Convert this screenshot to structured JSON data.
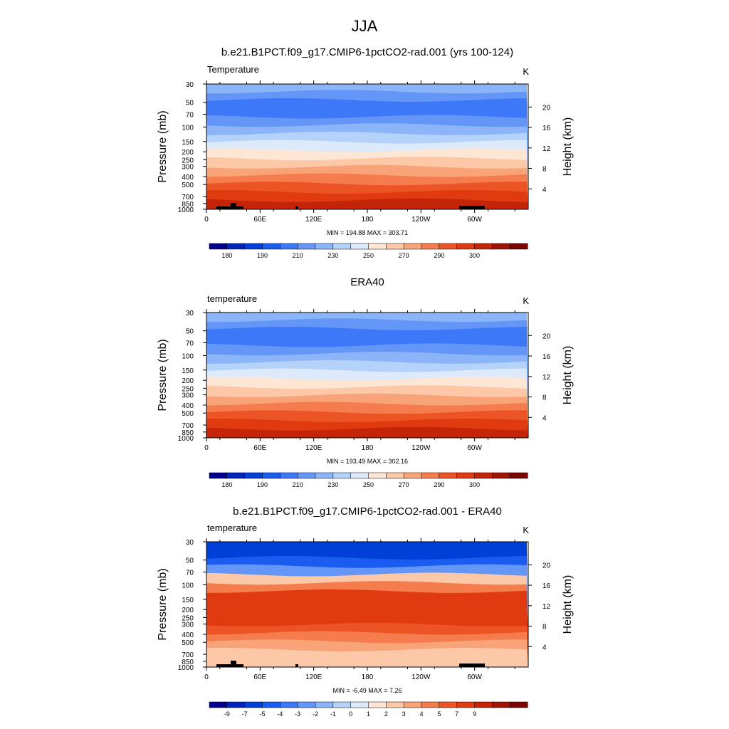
{
  "figure_title": "JJA",
  "chart_data": [
    {
      "type": "heatmap",
      "title": "b.e21.B1PCT.f09_g17.CMIP6-1pctCO2-rad.001 (yrs 100-124)",
      "left_string": "Temperature",
      "units": "K",
      "ylabel": "Pressure (mb)",
      "ylabel_right": "Height (km)",
      "x_ticks": [
        "0",
        "60E",
        "120E",
        "180",
        "120W",
        "60W"
      ],
      "p_ticks": [
        "30",
        "50",
        "70",
        "100",
        "150",
        "200",
        "250",
        "300",
        "400",
        "500",
        "700",
        "850",
        "1000"
      ],
      "z_ticks": [
        "20",
        "16",
        "12",
        "8",
        "4"
      ],
      "minmax": "MIN = 194.88  MAX = 303.71",
      "min": 194.88,
      "max": 303.71,
      "colorbar_labels": [
        "180",
        "190",
        "210",
        "230",
        "250",
        "270",
        "290",
        "300"
      ],
      "palette": [
        "#00008c",
        "#0024b8",
        "#0040d8",
        "#1a5cf0",
        "#3c78f8",
        "#6496f8",
        "#8cb4f8",
        "#b4d2fa",
        "#dceafc",
        "#fde6d4",
        "#fcc8a8",
        "#f9a478",
        "#f57c4c",
        "#ec5426",
        "#e03a10",
        "#c42408",
        "#a01404",
        "#7a0400"
      ],
      "profile": [
        "#8cb4f8",
        "#6496f8",
        "#3c78f8",
        "#3c78f8",
        "#6496f8",
        "#8cb4f8",
        "#b4d2fa",
        "#dceafc",
        "#fde6d4",
        "#fcc8a8",
        "#f9a478",
        "#f57c4c",
        "#ec5426",
        "#e03a10",
        "#c42408"
      ],
      "has_topography": true
    },
    {
      "type": "heatmap",
      "title": "ERA40",
      "left_string": "temperature",
      "units": "K",
      "ylabel": "Pressure (mb)",
      "ylabel_right": "Height (km)",
      "x_ticks": [
        "0",
        "60E",
        "120E",
        "180",
        "120W",
        "60W"
      ],
      "p_ticks": [
        "30",
        "50",
        "70",
        "100",
        "150",
        "200",
        "250",
        "300",
        "400",
        "500",
        "700",
        "850",
        "1000"
      ],
      "z_ticks": [
        "20",
        "16",
        "12",
        "8",
        "4"
      ],
      "minmax": "MIN = 193.49  MAX = 302.16",
      "min": 193.49,
      "max": 302.16,
      "colorbar_labels": [
        "180",
        "190",
        "210",
        "230",
        "250",
        "270",
        "290",
        "300"
      ],
      "palette": [
        "#00008c",
        "#0024b8",
        "#0040d8",
        "#1a5cf0",
        "#3c78f8",
        "#6496f8",
        "#8cb4f8",
        "#b4d2fa",
        "#dceafc",
        "#fde6d4",
        "#fcc8a8",
        "#f9a478",
        "#f57c4c",
        "#ec5426",
        "#e03a10",
        "#c42408",
        "#a01404",
        "#7a0400"
      ],
      "profile": [
        "#8cb4f8",
        "#6496f8",
        "#3c78f8",
        "#3c78f8",
        "#6496f8",
        "#8cb4f8",
        "#b4d2fa",
        "#dceafc",
        "#fde6d4",
        "#fcc8a8",
        "#f9a478",
        "#f57c4c",
        "#ec5426",
        "#e03a10",
        "#c42408"
      ],
      "has_topography": false
    },
    {
      "type": "heatmap",
      "title": "b.e21.B1PCT.f09_g17.CMIP6-1pctCO2-rad.001 - ERA40",
      "left_string": "temperature",
      "units": "K",
      "ylabel": "Pressure (mb)",
      "ylabel_right": "Height (km)",
      "x_ticks": [
        "0",
        "60E",
        "120E",
        "180",
        "120W",
        "60W"
      ],
      "p_ticks": [
        "30",
        "50",
        "70",
        "100",
        "150",
        "200",
        "250",
        "300",
        "400",
        "500",
        "700",
        "850",
        "1000"
      ],
      "z_ticks": [
        "20",
        "16",
        "12",
        "8",
        "4"
      ],
      "minmax": "MIN =  -6.49  MAX =   7.26",
      "min": -6.49,
      "max": 7.26,
      "colorbar_labels": [
        "-9",
        "-7",
        "-5",
        "-4",
        "-3",
        "-2",
        "-1",
        "0",
        "1",
        "2",
        "3",
        "4",
        "5",
        "7",
        "9"
      ],
      "palette": [
        "#00008c",
        "#0024b8",
        "#0040d8",
        "#1a5cf0",
        "#3c78f8",
        "#6496f8",
        "#8cb4f8",
        "#b4d2fa",
        "#dceafc",
        "#fde6d4",
        "#fcc8a8",
        "#f9a478",
        "#f57c4c",
        "#ec5426",
        "#e03a10",
        "#c42408",
        "#a01404",
        "#7a0400"
      ],
      "profile": [
        "#0040d8",
        "#0040d8",
        "#1a5cf0",
        "#6496f8",
        "#fcc8a8",
        "#f57c4c",
        "#e03a10",
        "#e03a10",
        "#e03a10",
        "#e03a10",
        "#ec5426",
        "#f57c4c",
        "#f9a478",
        "#fcc8a8",
        "#fcc8a8"
      ],
      "has_topography": true
    }
  ]
}
